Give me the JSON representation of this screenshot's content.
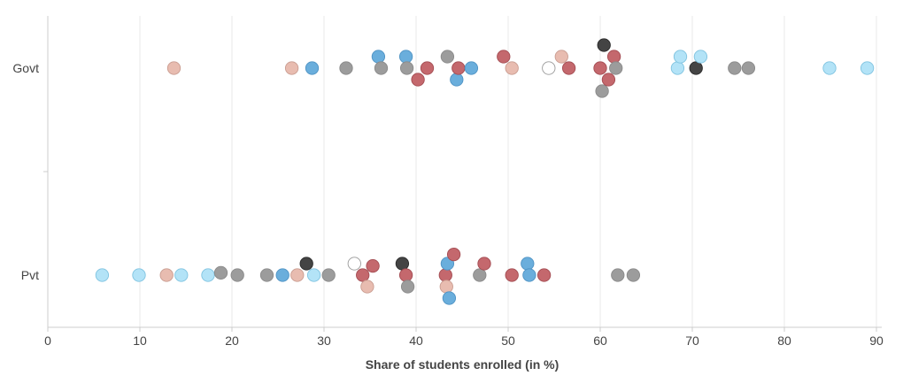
{
  "chart_data": {
    "type": "scatter",
    "subtype": "beeswarm",
    "title": "",
    "xlabel": "Share of students enrolled (in %)",
    "ylabel": "",
    "xlim": [
      0,
      90
    ],
    "x_ticks": [
      "0",
      "10",
      "20",
      "30",
      "40",
      "50",
      "60",
      "70",
      "80",
      "90"
    ],
    "categories": [
      "Govt",
      "Pvt"
    ],
    "grid": "vertical",
    "legend": "none",
    "colors": {
      "light_blue": "#b3e3f7",
      "blue": "#6aaedc",
      "pink": "#e8bcb0",
      "red": "#c4686d",
      "gray": "#9c9c9c",
      "dark": "#444444",
      "white": "#ffffff",
      "grid": "#e8e8e8",
      "axis": "#cccccc",
      "text": "#444444"
    },
    "points": [
      {
        "cat": "Govt",
        "x": 13.7,
        "o": 0,
        "c": "pink"
      },
      {
        "cat": "Govt",
        "x": 26.5,
        "o": 0,
        "c": "pink"
      },
      {
        "cat": "Govt",
        "x": 28.7,
        "o": 0,
        "c": "blue"
      },
      {
        "cat": "Govt",
        "x": 32.4,
        "o": 0,
        "c": "gray"
      },
      {
        "cat": "Govt",
        "x": 35.9,
        "o": 1,
        "c": "blue"
      },
      {
        "cat": "Govt",
        "x": 36.2,
        "o": 0,
        "c": "gray"
      },
      {
        "cat": "Govt",
        "x": 38.9,
        "o": 1,
        "c": "blue"
      },
      {
        "cat": "Govt",
        "x": 39.0,
        "o": 0,
        "c": "gray"
      },
      {
        "cat": "Govt",
        "x": 40.2,
        "o": -1,
        "c": "red"
      },
      {
        "cat": "Govt",
        "x": 41.2,
        "o": 0,
        "c": "red"
      },
      {
        "cat": "Govt",
        "x": 43.4,
        "o": 1,
        "c": "gray"
      },
      {
        "cat": "Govt",
        "x": 44.4,
        "o": -1,
        "c": "blue"
      },
      {
        "cat": "Govt",
        "x": 44.6,
        "o": 0,
        "c": "red"
      },
      {
        "cat": "Govt",
        "x": 46.0,
        "o": 0,
        "c": "blue"
      },
      {
        "cat": "Govt",
        "x": 49.5,
        "o": 1,
        "c": "red"
      },
      {
        "cat": "Govt",
        "x": 50.4,
        "o": 0,
        "c": "pink"
      },
      {
        "cat": "Govt",
        "x": 54.4,
        "o": 0,
        "c": "white"
      },
      {
        "cat": "Govt",
        "x": 55.8,
        "o": 1,
        "c": "pink"
      },
      {
        "cat": "Govt",
        "x": 56.6,
        "o": 0,
        "c": "red"
      },
      {
        "cat": "Govt",
        "x": 60.0,
        "o": 0,
        "c": "red"
      },
      {
        "cat": "Govt",
        "x": 60.2,
        "o": -2,
        "c": "gray"
      },
      {
        "cat": "Govt",
        "x": 60.4,
        "o": 2,
        "c": "dark"
      },
      {
        "cat": "Govt",
        "x": 60.9,
        "o": -1,
        "c": "red"
      },
      {
        "cat": "Govt",
        "x": 61.5,
        "o": 1,
        "c": "red"
      },
      {
        "cat": "Govt",
        "x": 61.7,
        "o": 0,
        "c": "gray"
      },
      {
        "cat": "Govt",
        "x": 68.4,
        "o": 0,
        "c": "light_blue"
      },
      {
        "cat": "Govt",
        "x": 68.7,
        "o": 1,
        "c": "light_blue"
      },
      {
        "cat": "Govt",
        "x": 70.4,
        "o": 0,
        "c": "dark"
      },
      {
        "cat": "Govt",
        "x": 70.9,
        "o": 1,
        "c": "light_blue"
      },
      {
        "cat": "Govt",
        "x": 74.6,
        "o": 0,
        "c": "gray"
      },
      {
        "cat": "Govt",
        "x": 76.1,
        "o": 0,
        "c": "gray"
      },
      {
        "cat": "Govt",
        "x": 84.9,
        "o": 0,
        "c": "light_blue"
      },
      {
        "cat": "Govt",
        "x": 89.0,
        "o": 0,
        "c": "light_blue"
      },
      {
        "cat": "Pvt",
        "x": 5.9,
        "o": 0,
        "c": "light_blue"
      },
      {
        "cat": "Pvt",
        "x": 9.9,
        "o": 0,
        "c": "light_blue"
      },
      {
        "cat": "Pvt",
        "x": 12.9,
        "o": 0,
        "c": "pink"
      },
      {
        "cat": "Pvt",
        "x": 14.5,
        "o": 0,
        "c": "light_blue"
      },
      {
        "cat": "Pvt",
        "x": 17.4,
        "o": 0,
        "c": "light_blue"
      },
      {
        "cat": "Pvt",
        "x": 18.8,
        "o": 0.2,
        "c": "gray"
      },
      {
        "cat": "Pvt",
        "x": 20.6,
        "o": 0,
        "c": "gray"
      },
      {
        "cat": "Pvt",
        "x": 23.8,
        "o": 0,
        "c": "gray"
      },
      {
        "cat": "Pvt",
        "x": 25.5,
        "o": 0,
        "c": "blue"
      },
      {
        "cat": "Pvt",
        "x": 27.1,
        "o": 0,
        "c": "pink"
      },
      {
        "cat": "Pvt",
        "x": 28.1,
        "o": 1,
        "c": "dark"
      },
      {
        "cat": "Pvt",
        "x": 28.9,
        "o": 0,
        "c": "light_blue"
      },
      {
        "cat": "Pvt",
        "x": 30.5,
        "o": 0,
        "c": "gray"
      },
      {
        "cat": "Pvt",
        "x": 33.3,
        "o": 1,
        "c": "white"
      },
      {
        "cat": "Pvt",
        "x": 34.2,
        "o": 0,
        "c": "red"
      },
      {
        "cat": "Pvt",
        "x": 34.7,
        "o": -1,
        "c": "pink"
      },
      {
        "cat": "Pvt",
        "x": 35.3,
        "o": 0.8,
        "c": "red"
      },
      {
        "cat": "Pvt",
        "x": 38.5,
        "o": 1,
        "c": "dark"
      },
      {
        "cat": "Pvt",
        "x": 38.9,
        "o": 0,
        "c": "red"
      },
      {
        "cat": "Pvt",
        "x": 39.1,
        "o": -1,
        "c": "gray"
      },
      {
        "cat": "Pvt",
        "x": 43.2,
        "o": 0,
        "c": "red"
      },
      {
        "cat": "Pvt",
        "x": 43.3,
        "o": -1,
        "c": "pink"
      },
      {
        "cat": "Pvt",
        "x": 43.4,
        "o": 1,
        "c": "blue"
      },
      {
        "cat": "Pvt",
        "x": 43.6,
        "o": -2,
        "c": "blue"
      },
      {
        "cat": "Pvt",
        "x": 44.1,
        "o": 1.8,
        "c": "red"
      },
      {
        "cat": "Pvt",
        "x": 46.9,
        "o": 0,
        "c": "gray"
      },
      {
        "cat": "Pvt",
        "x": 47.4,
        "o": 1,
        "c": "red"
      },
      {
        "cat": "Pvt",
        "x": 50.4,
        "o": 0,
        "c": "red"
      },
      {
        "cat": "Pvt",
        "x": 52.1,
        "o": 1,
        "c": "blue"
      },
      {
        "cat": "Pvt",
        "x": 52.3,
        "o": 0,
        "c": "blue"
      },
      {
        "cat": "Pvt",
        "x": 53.9,
        "o": 0,
        "c": "red"
      },
      {
        "cat": "Pvt",
        "x": 61.9,
        "o": 0,
        "c": "gray"
      },
      {
        "cat": "Pvt",
        "x": 63.6,
        "o": 0,
        "c": "gray"
      }
    ]
  }
}
